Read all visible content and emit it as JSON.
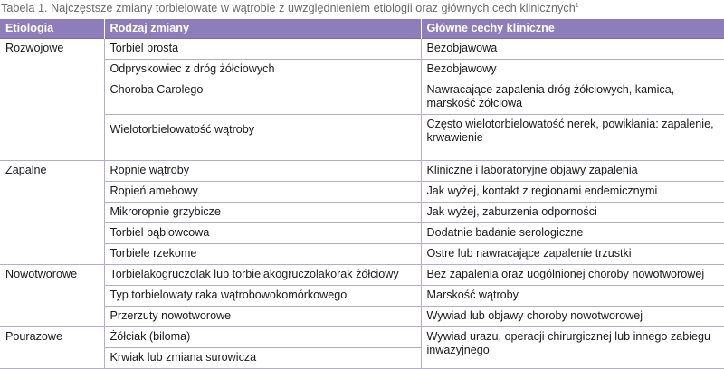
{
  "caption": {
    "text": "Tabela 1. Najczęstsze zmiany torbielowate w wątrobie z uwzględnieniem etiologii oraz głównych cech klinicznych",
    "sup": "1"
  },
  "headers": {
    "etiology": "Etiologia",
    "type": "Rodzaj zmiany",
    "features": "Główne cechy kliniczne"
  },
  "groups": [
    {
      "etiology": "Rozwojowe",
      "rows": [
        {
          "type": "Torbiel prosta",
          "features": "Bezobjawowa"
        },
        {
          "type": "Odpryskowiec z dróg żółciowych",
          "features": "Bezobjawowy"
        },
        {
          "type": "Choroba Carolego",
          "features": "Nawracające zapalenia dróg żółciowych, kamica, marskość żółciowa"
        },
        {
          "type": "Wielotorbielowatość wątroby",
          "features": "Często wielotorbielowatość nerek, powikłania: zapalenie, krwawienie"
        }
      ]
    },
    {
      "etiology": "Zapalne",
      "rows": [
        {
          "type": "Ropnie wątroby",
          "features": "Kliniczne i laboratoryjne objawy zapalenia"
        },
        {
          "type": "Ropień amebowy",
          "features": "Jak wyżej, kontakt z regionami endemicznymi"
        },
        {
          "type": "Mikroropnie grzybicze",
          "features": "Jak wyżej, zaburzenia odporności"
        },
        {
          "type": "Torbiel bąblowcowa",
          "features": "Dodatnie badanie serologiczne"
        },
        {
          "type": "Torbiele rzekome",
          "features": "Ostre lub nawracające zapalenie trzustki"
        }
      ]
    },
    {
      "etiology": "Nowotworowe",
      "rows": [
        {
          "type": "Torbielakogruczolak lub torbielakogruczolakorak żółciowy",
          "features": "Bez zapalenia oraz uogólnionej choroby nowotworowej"
        },
        {
          "type": "Typ torbielowaty raka wątrobowokomórkowego",
          "features": "Marskość wątroby"
        },
        {
          "type": "Przerzuty nowotworowe",
          "features": "Wywiad lub objawy choroby nowotworowej"
        }
      ]
    },
    {
      "etiology": "Pourazowe",
      "rows": [
        {
          "type": "Żółciak (biloma)"
        },
        {
          "type": "Krwiak lub zmiana surowicza"
        }
      ],
      "shared_features": "Wywiad urazu, operacji chirurgicznej lub innego zabiegu inwazyjnego"
    }
  ]
}
